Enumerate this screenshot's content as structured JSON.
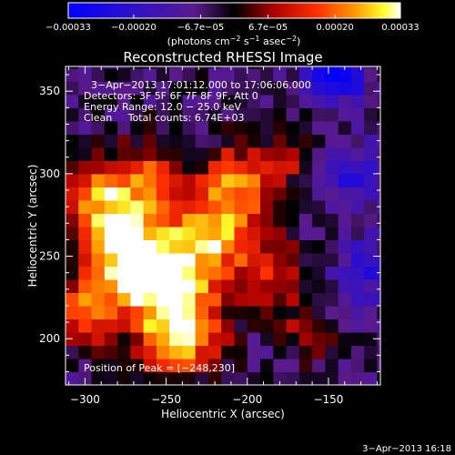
{
  "chart_data": {
    "type": "heatmap",
    "title": "Reconstructed RHESSI Image",
    "xlabel": "Heliocentric X (arcsec)",
    "ylabel": "Heliocentric Y (arcsec)",
    "xlim": [
      -312,
      -118
    ],
    "ylim": [
      172,
      365
    ],
    "x_ticks": [
      {
        "value": -300,
        "label": "−300"
      },
      {
        "value": -250,
        "label": "−250"
      },
      {
        "value": -200,
        "label": "−200"
      },
      {
        "value": -150,
        "label": "−150"
      }
    ],
    "y_ticks": [
      {
        "value": 200,
        "label": "200"
      },
      {
        "value": 250,
        "label": "250"
      },
      {
        "value": 300,
        "label": "300"
      },
      {
        "value": 350,
        "label": "350"
      }
    ],
    "colorbar": {
      "min": -0.00033,
      "max": 0.00033,
      "ticks": [
        {
          "value": -0.00033,
          "label": "−0.00033"
        },
        {
          "value": -0.0002,
          "label": "−0.00020"
        },
        {
          "value": -6.7e-05,
          "label": "−6.7e−05"
        },
        {
          "value": 6.7e-05,
          "label": "6.7e−05"
        },
        {
          "value": 0.0002,
          "label": "0.00020"
        },
        {
          "value": 0.00033,
          "label": "0.00033"
        }
      ],
      "units_main": "(photons cm",
      "units_sup1": "−2",
      "units_mid": " s",
      "units_sup2": "−1",
      "units_mid2": " asec",
      "units_sup3": "−2",
      "units_end": ")",
      "stops": [
        {
          "v": 0.0,
          "color": "#0000ff"
        },
        {
          "v": 0.2,
          "color": "#3010c8"
        },
        {
          "v": 0.38,
          "color": "#5a1a8c"
        },
        {
          "v": 0.5,
          "color": "#000000"
        },
        {
          "v": 0.62,
          "color": "#b00000"
        },
        {
          "v": 0.75,
          "color": "#ff3000"
        },
        {
          "v": 0.87,
          "color": "#ffa000"
        },
        {
          "v": 0.95,
          "color": "#ffff30"
        },
        {
          "v": 1.0,
          "color": "#ffffff"
        }
      ]
    },
    "grid": {
      "step": 8,
      "background": 0.42,
      "blobs": [
        {
          "x": -250,
          "y": 233,
          "amp": 0.52,
          "s": 22
        },
        {
          "x": -275,
          "y": 255,
          "amp": 0.45,
          "s": 20
        },
        {
          "x": -290,
          "y": 285,
          "amp": 0.38,
          "s": 16
        },
        {
          "x": -220,
          "y": 265,
          "amp": 0.4,
          "s": 18
        },
        {
          "x": -205,
          "y": 295,
          "amp": 0.35,
          "s": 16
        },
        {
          "x": -240,
          "y": 200,
          "amp": 0.42,
          "s": 16
        },
        {
          "x": -300,
          "y": 215,
          "amp": 0.35,
          "s": 14
        },
        {
          "x": -260,
          "y": 300,
          "amp": 0.28,
          "s": 14
        },
        {
          "x": -185,
          "y": 240,
          "amp": 0.25,
          "s": 14
        },
        {
          "x": -165,
          "y": 205,
          "amp": 0.18,
          "s": 12
        },
        {
          "x": -175,
          "y": 310,
          "amp": 0.18,
          "s": 12
        },
        {
          "x": -145,
          "y": 360,
          "amp": -0.45,
          "s": 12
        },
        {
          "x": -135,
          "y": 300,
          "amp": -0.25,
          "s": 14
        },
        {
          "x": -125,
          "y": 240,
          "amp": -0.22,
          "s": 14
        }
      ]
    },
    "annotations": {
      "time": "3−Apr−2013 17:01:12.000 to 17:06:06.000",
      "detectors": "Detectors: 3F 5F 6F 7F 8F 9F, Att 0",
      "energy": "Energy Range: 12.0 − 25.0 keV",
      "clean": "Clean     Total counts: 6.74E+03",
      "peak": "Position of Peak = [−248,230]"
    },
    "timestamp": "3−Apr−2013 16:18"
  }
}
